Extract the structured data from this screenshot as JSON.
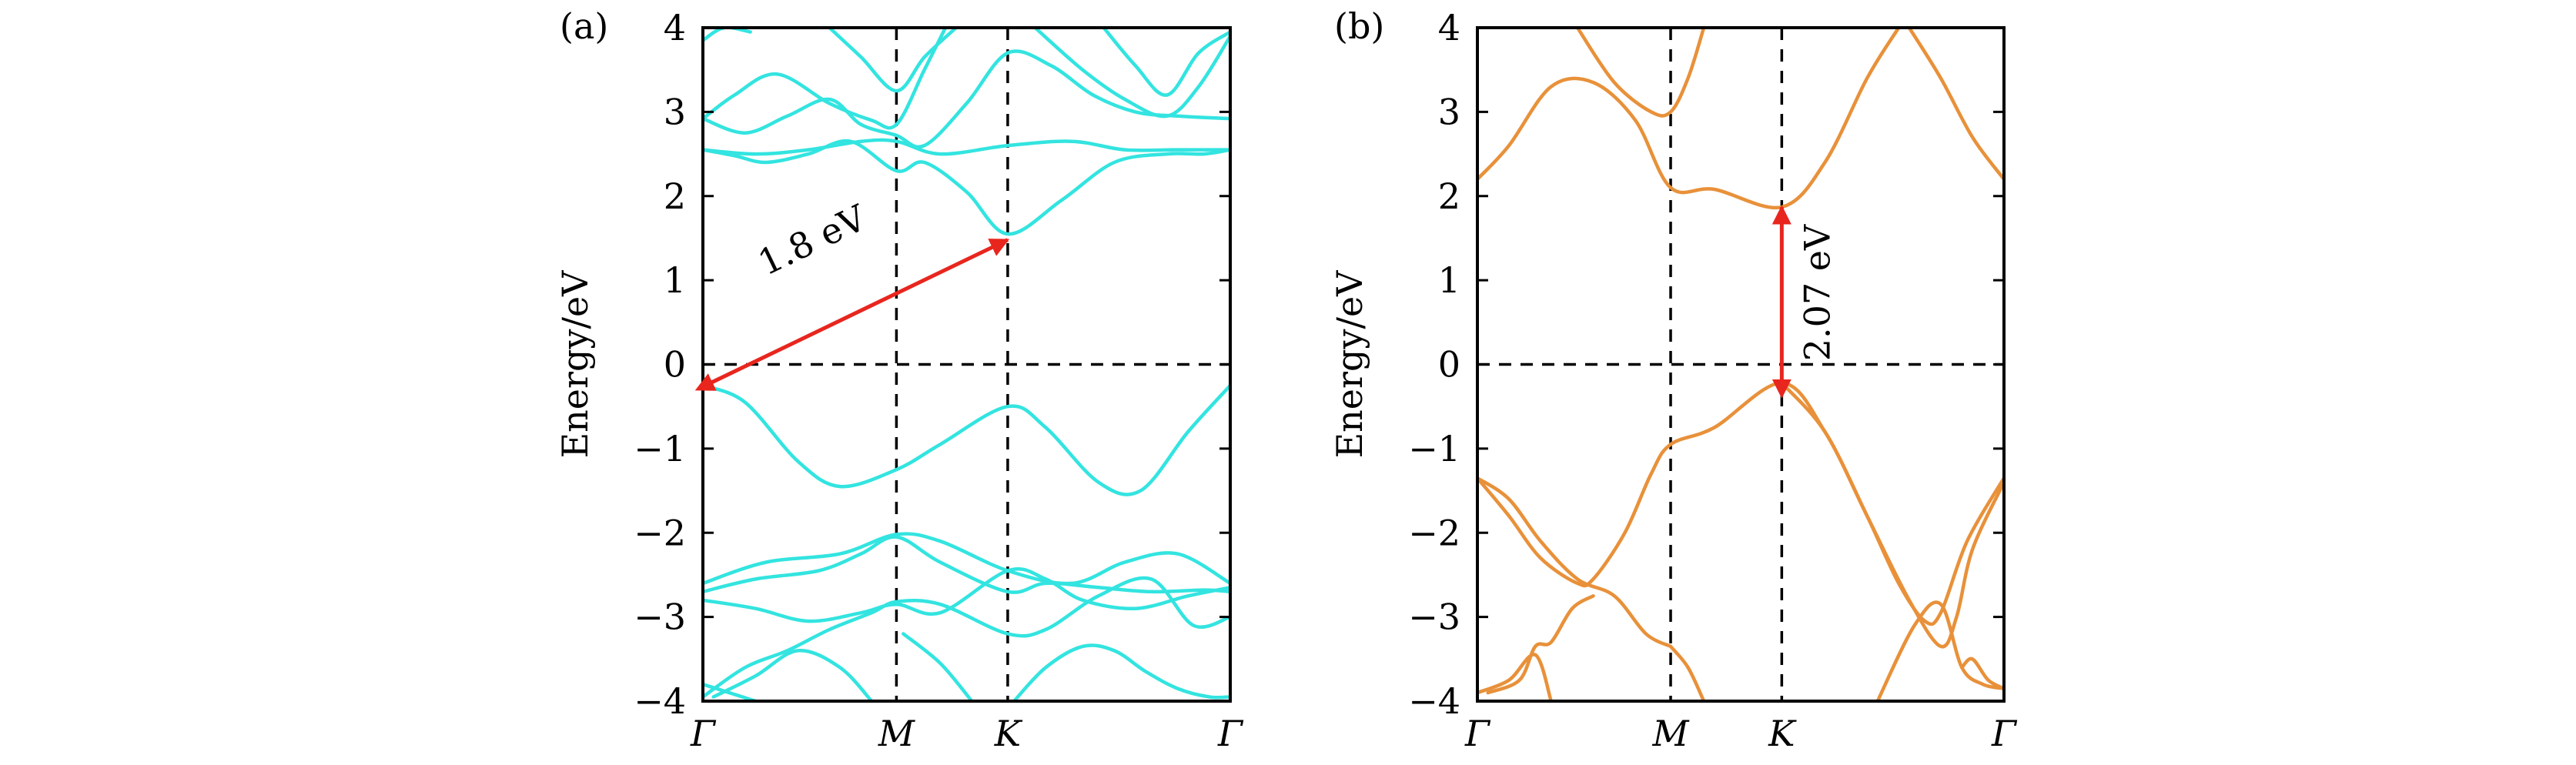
{
  "colors": {
    "panel_a_bands": "#33e4e0",
    "panel_b_bands": "#e8913a",
    "arrow": "#e8261e"
  },
  "chart_data": [
    {
      "panel": "(a)",
      "type": "line",
      "ylabel": "Energy/eV",
      "ylim": [
        -4,
        4
      ],
      "yticks": [
        4,
        3,
        2,
        1,
        0,
        -1,
        -2,
        -3,
        -4
      ],
      "xlim": [
        0,
        1
      ],
      "xticks": [
        {
          "label": "Γ",
          "x": 0
        },
        {
          "label": "M",
          "x": 0.367
        },
        {
          "label": "K",
          "x": 0.578
        },
        {
          "label": "Γ",
          "x": 1
        }
      ],
      "guides": {
        "vertical_x": [
          0.367,
          0.578
        ],
        "horizontal_y": [
          0
        ]
      },
      "annotation": {
        "text": "1.8 eV",
        "from": [
          0.0,
          -0.22
        ],
        "to": [
          0.578,
          1.48
        ]
      },
      "series": [
        {
          "x": [
            0,
            0.08,
            0.18,
            0.26,
            0.367,
            0.45,
            0.578,
            0.65,
            0.75,
            0.83,
            0.92,
            1
          ],
          "y": [
            -0.25,
            -0.45,
            -1.15,
            -1.45,
            -1.25,
            -0.95,
            -0.5,
            -0.75,
            -1.4,
            -1.5,
            -0.8,
            -0.25
          ]
        },
        {
          "x": [
            0,
            0.12,
            0.26,
            0.367,
            0.45,
            0.578,
            0.7,
            0.8,
            0.9,
            1
          ],
          "y": [
            -2.6,
            -2.35,
            -2.25,
            -2.02,
            -2.1,
            -2.45,
            -2.6,
            -2.35,
            -2.25,
            -2.6
          ]
        },
        {
          "x": [
            0,
            0.1,
            0.22,
            0.3,
            0.367,
            0.45,
            0.578,
            0.65,
            0.75,
            0.85,
            0.95,
            1
          ],
          "y": [
            -2.7,
            -2.55,
            -2.45,
            -2.25,
            -2.05,
            -2.35,
            -2.7,
            -2.6,
            -2.65,
            -2.7,
            -2.68,
            -2.7
          ]
        },
        {
          "x": [
            0,
            0.1,
            0.2,
            0.3,
            0.367,
            0.45,
            0.578,
            0.65,
            0.72,
            0.82,
            0.92,
            1
          ],
          "y": [
            -2.8,
            -2.9,
            -3.05,
            -2.95,
            -2.85,
            -2.95,
            -2.45,
            -2.55,
            -2.8,
            -2.9,
            -2.75,
            -2.65
          ]
        },
        {
          "x": [
            0,
            0.08,
            0.16,
            0.24,
            0.32,
            0.367,
            0.45,
            0.578,
            0.65,
            0.75,
            0.85,
            0.93,
            1
          ],
          "y": [
            -3.95,
            -3.6,
            -3.4,
            -3.15,
            -2.95,
            -2.82,
            -2.85,
            -3.2,
            -3.15,
            -2.75,
            -2.55,
            -3.1,
            -3.0
          ]
        },
        {
          "x": [
            0.02,
            0.1,
            0.18,
            0.26,
            0.32
          ],
          "y": [
            -3.95,
            -3.7,
            -3.4,
            -3.6,
            -4.0
          ]
        },
        {
          "x": [
            0.38,
            0.45,
            0.51
          ],
          "y": [
            -3.2,
            -3.55,
            -4.0
          ]
        },
        {
          "x": [
            0.59,
            0.65,
            0.72,
            0.78,
            0.84,
            0.9,
            0.96,
            1
          ],
          "y": [
            -4.0,
            -3.6,
            -3.35,
            -3.4,
            -3.65,
            -3.85,
            -3.95,
            -3.95
          ]
        },
        {
          "x": [
            0.0,
            0.05,
            0.1
          ],
          "y": [
            -3.8,
            -3.9,
            -4.0
          ]
        },
        {
          "x": [
            0,
            0.06,
            0.12,
            0.2,
            0.28,
            0.367,
            0.42,
            0.5,
            0.578,
            0.68,
            0.78,
            0.88,
            0.95,
            1
          ],
          "y": [
            2.55,
            2.48,
            2.4,
            2.5,
            2.65,
            2.3,
            2.4,
            2.05,
            1.55,
            1.95,
            2.4,
            2.5,
            2.5,
            2.55
          ]
        },
        {
          "x": [
            0,
            0.1,
            0.2,
            0.3,
            0.367,
            0.45,
            0.578,
            0.7,
            0.8,
            0.9,
            1
          ],
          "y": [
            2.55,
            2.5,
            2.55,
            2.65,
            2.65,
            2.5,
            2.6,
            2.65,
            2.55,
            2.55,
            2.55
          ]
        },
        {
          "x": [
            0,
            0.08,
            0.16,
            0.24,
            0.3,
            0.367,
            0.42,
            0.5,
            0.578,
            0.66,
            0.74,
            0.82,
            0.9,
            1
          ],
          "y": [
            2.92,
            2.75,
            2.95,
            3.15,
            2.85,
            2.72,
            2.6,
            3.1,
            3.7,
            3.55,
            3.2,
            3.0,
            2.95,
            2.92
          ]
        },
        {
          "x": [
            0,
            0.06,
            0.14,
            0.24,
            0.32,
            0.367,
            0.42,
            0.46
          ],
          "y": [
            2.92,
            3.2,
            3.45,
            3.1,
            2.9,
            2.85,
            3.5,
            4.0
          ]
        },
        {
          "x": [
            0.24,
            0.3,
            0.367,
            0.42,
            0.48
          ],
          "y": [
            4.0,
            3.65,
            3.25,
            3.65,
            4.0
          ]
        },
        {
          "x": [
            0,
            0.04,
            0.09
          ],
          "y": [
            3.85,
            4.0,
            3.95
          ]
        },
        {
          "x": [
            0.63,
            0.72,
            0.8,
            0.88,
            0.94,
            1
          ],
          "y": [
            4.0,
            3.5,
            3.15,
            2.95,
            3.3,
            3.9
          ]
        },
        {
          "x": [
            0.76,
            0.82,
            0.88,
            0.94,
            1
          ],
          "y": [
            4.0,
            3.55,
            3.2,
            3.7,
            3.95
          ]
        }
      ]
    },
    {
      "panel": "(b)",
      "type": "line",
      "ylabel": "Energy/eV",
      "ylim": [
        -4,
        4
      ],
      "yticks": [
        4,
        3,
        2,
        1,
        0,
        -1,
        -2,
        -3,
        -4
      ],
      "xlim": [
        0,
        1
      ],
      "xticks": [
        {
          "label": "Γ",
          "x": 0
        },
        {
          "label": "M",
          "x": 0.367
        },
        {
          "label": "K",
          "x": 0.578
        },
        {
          "label": "Γ",
          "x": 1
        }
      ],
      "guides": {
        "vertical_x": [
          0.367,
          0.578
        ],
        "horizontal_y": [
          0
        ]
      },
      "annotation": {
        "text": "2.07 eV",
        "from": [
          0.578,
          -0.2
        ],
        "to": [
          0.578,
          1.87
        ]
      },
      "series": [
        {
          "x": [
            0,
            0.06,
            0.12,
            0.19,
            0.26,
            0.32,
            0.367
          ],
          "y": [
            -1.35,
            -1.6,
            -2.1,
            -2.55,
            -2.75,
            -3.2,
            -3.35
          ]
        },
        {
          "x": [
            0,
            0.06,
            0.12,
            0.19,
            0.22,
            0.28,
            0.33,
            0.367,
            0.45,
            0.578,
            0.66,
            0.74,
            0.8,
            0.85,
            0.88,
            0.93,
            1
          ],
          "y": [
            -1.35,
            -1.8,
            -2.3,
            -2.6,
            -2.55,
            -2.0,
            -1.3,
            -0.95,
            -0.75,
            -0.22,
            -0.8,
            -1.8,
            -2.6,
            -3.05,
            -2.95,
            -2.1,
            -1.35
          ]
        },
        {
          "x": [
            0.578,
            0.66,
            0.74,
            0.82,
            0.88,
            0.91,
            0.94,
            1
          ],
          "y": [
            -0.22,
            -0.8,
            -1.8,
            -2.8,
            -3.35,
            -3.0,
            -2.2,
            -1.4
          ]
        },
        {
          "x": [
            0.76,
            0.83,
            0.88,
            0.92,
            0.96,
            1
          ],
          "y": [
            -4.0,
            -3.1,
            -2.85,
            -3.6,
            -3.8,
            -3.85
          ]
        },
        {
          "x": [
            0.02,
            0.08,
            0.11,
            0.14,
            0.18,
            0.22
          ],
          "y": [
            -3.9,
            -3.75,
            -3.35,
            -3.3,
            -2.9,
            -2.75
          ]
        },
        {
          "x": [
            0,
            0.06,
            0.11,
            0.14
          ],
          "y": [
            -3.9,
            -3.75,
            -3.45,
            -4.0
          ]
        },
        {
          "x": [
            0.367,
            0.4,
            0.43
          ],
          "y": [
            -3.35,
            -3.6,
            -4.0
          ]
        },
        {
          "x": [
            0.92,
            0.94,
            0.97,
            1
          ],
          "y": [
            -3.6,
            -3.5,
            -3.75,
            -3.85
          ]
        },
        {
          "x": [
            0,
            0.06,
            0.14,
            0.22,
            0.3,
            0.367,
            0.45,
            0.578,
            0.66,
            0.74,
            0.8
          ],
          "y": [
            2.2,
            2.6,
            3.3,
            3.35,
            2.9,
            2.1,
            2.08,
            1.87,
            2.4,
            3.4,
            4.0
          ]
        },
        {
          "x": [
            0.19,
            0.26,
            0.33,
            0.367,
            0.4,
            0.43
          ],
          "y": [
            4.0,
            3.35,
            3.0,
            3.0,
            3.4,
            4.0
          ]
        },
        {
          "x": [
            0.82,
            0.88,
            0.94,
            1
          ],
          "y": [
            4.0,
            3.4,
            2.7,
            2.2
          ]
        }
      ]
    }
  ]
}
